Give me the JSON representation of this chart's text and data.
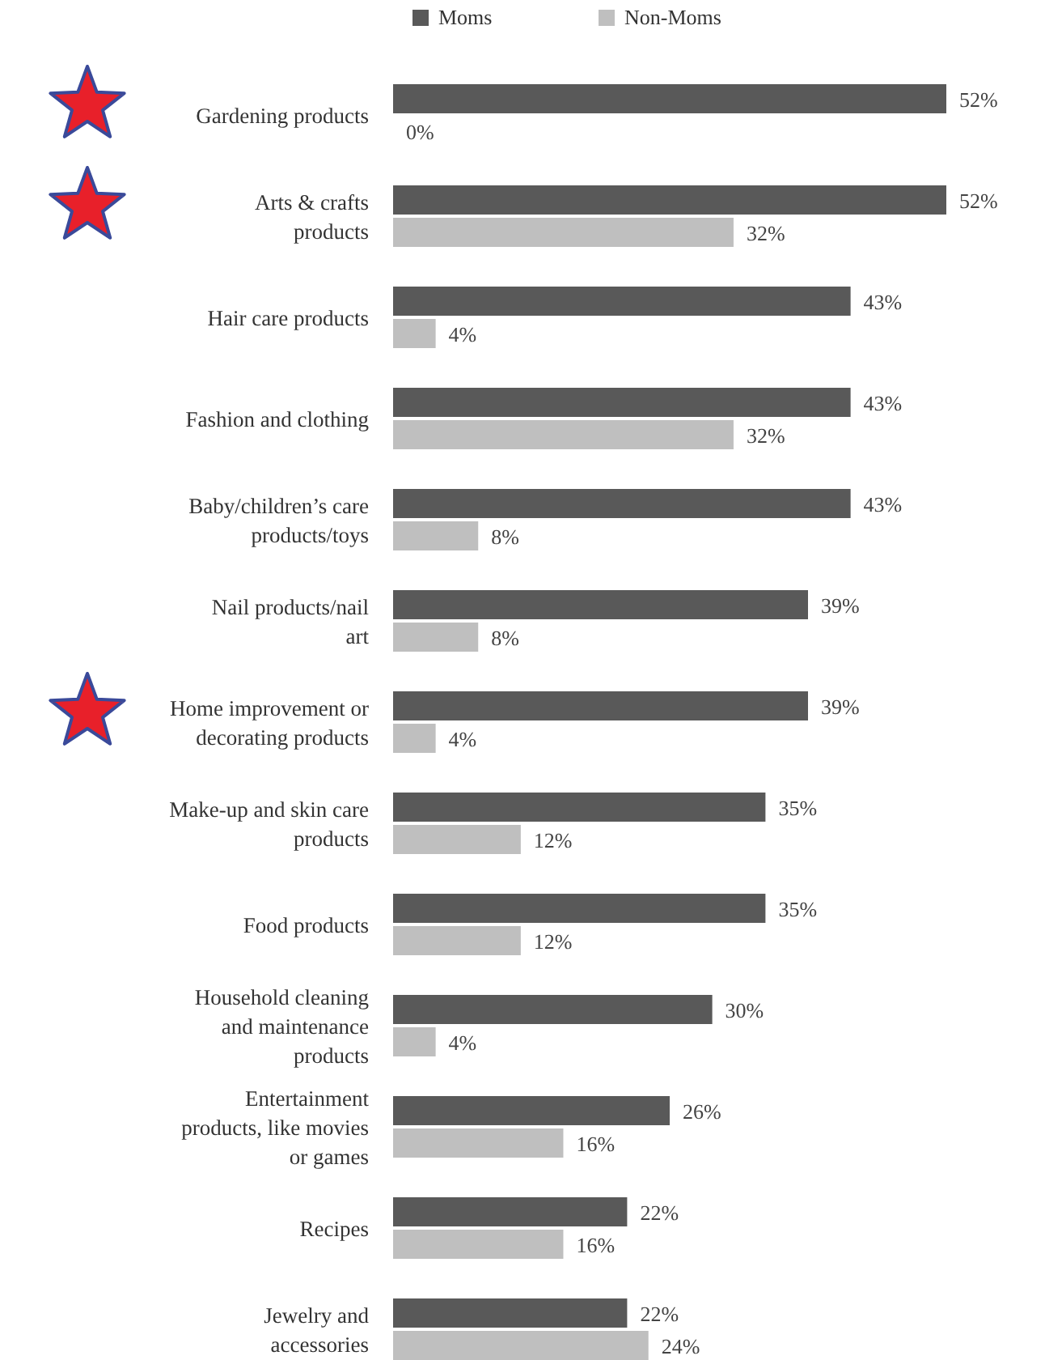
{
  "chart_data": {
    "type": "bar",
    "orientation": "horizontal",
    "legend": "top",
    "categories": [
      "Gardening products",
      "Arts & crafts products",
      "Hair care products",
      "Fashion and clothing",
      "Baby/children’s care products/toys",
      "Nail products/nail art",
      "Home improvement or decorating products",
      "Make-up and skin care products",
      "Food products",
      "Household cleaning and maintenance products",
      "Entertainment products, like movies or games",
      "Recipes",
      "Jewelry and accessories"
    ],
    "series": [
      {
        "name": "Moms",
        "color": "#595959",
        "values": [
          52,
          52,
          43,
          43,
          43,
          39,
          39,
          35,
          35,
          30,
          26,
          22,
          22
        ],
        "value_labels": [
          "52%",
          "52%",
          "43%",
          "43%",
          "43%",
          "39%",
          "39%",
          "35%",
          "35%",
          "30%",
          "26%",
          "22%",
          "22%"
        ]
      },
      {
        "name": "Non-Moms",
        "color": "#bfbfbf",
        "values": [
          0,
          32,
          4,
          32,
          8,
          8,
          4,
          12,
          12,
          4,
          16,
          16,
          24
        ],
        "value_labels": [
          "0%",
          "32%",
          "4%",
          "32%",
          "8%",
          "8%",
          "4%",
          "12%",
          "12%",
          "4%",
          "16%",
          "16%",
          "24%"
        ]
      }
    ]
  }
}
